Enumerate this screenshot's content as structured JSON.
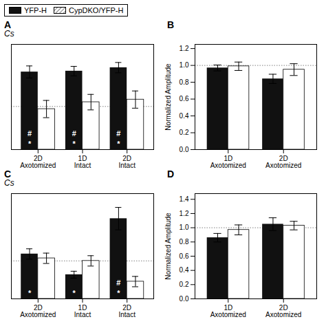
{
  "chart_data": [
    {
      "type": "bar",
      "title": "A",
      "subtitle": "Cs",
      "categories": [
        "2D\nAxotomized",
        "1D\nIntact",
        "2D\nIntact"
      ],
      "series": [
        {
          "name": "YFP-H",
          "color": "#111111",
          "values": [
            0.9,
            0.91,
            0.95
          ],
          "errors": [
            0.07,
            0.055,
            0.06
          ]
        },
        {
          "name": "CypDKO/YFP-H",
          "color": "#ffffff",
          "values": [
            0.47,
            0.55,
            0.58
          ],
          "errors": [
            0.1,
            0.09,
            0.1
          ]
        }
      ],
      "ylim": [
        0,
        1.22
      ],
      "yticks": [],
      "tick_labels": "x",
      "reference_y": 0.5,
      "bar_annotations": [
        [
          "#",
          "*"
        ],
        [
          "#",
          "*"
        ],
        [
          "#",
          "*"
        ]
      ],
      "legend": "upper left"
    },
    {
      "type": "bar",
      "title": "B",
      "categories": [
        "1D\nAxotomized",
        "2D\nAxotomized"
      ],
      "series": [
        {
          "name": "YFP-H",
          "color": "#111111",
          "values": [
            0.97,
            0.84
          ],
          "errors": [
            0.035,
            0.055
          ]
        },
        {
          "name": "CypDKO/YFP-H",
          "color": "#ffffff",
          "values": [
            0.99,
            0.95
          ],
          "errors": [
            0.05,
            0.07
          ]
        }
      ],
      "ylim": [
        0,
        1.25
      ],
      "yticks": [
        {
          "value": 0.0,
          "label": "0.0"
        },
        0.2,
        0.4,
        0.6,
        0.8,
        {
          "value": 1.0,
          "label": "1.0"
        },
        1.2
      ],
      "ylabel": "Normalized Amplitude",
      "reference_y": 1.0
    },
    {
      "type": "bar",
      "title": "C",
      "subtitle": "Cs",
      "categories": [
        "2D\nAxotomized",
        "1D\nIntact",
        "2D\nIntact"
      ],
      "series": [
        {
          "name": "YFP-H",
          "color": "#111111",
          "values": [
            0.52,
            0.28,
            0.93
          ],
          "errors": [
            0.06,
            0.04,
            0.13
          ]
        },
        {
          "name": "CypDKO/YFP-H",
          "color": "#ffffff",
          "values": [
            0.47,
            0.44,
            0.2
          ],
          "errors": [
            0.06,
            0.06,
            0.06
          ]
        }
      ],
      "ylim": [
        0,
        1.22
      ],
      "yticks": [],
      "tick_labels": "x",
      "reference_y": 0.44,
      "bar_annotations": [
        [
          "*"
        ],
        [
          "*"
        ],
        [
          "#",
          "*"
        ]
      ]
    },
    {
      "type": "bar",
      "title": "D",
      "categories": [
        "1D\nAxotomized",
        "2D\nAxotomized"
      ],
      "series": [
        {
          "name": "YFP-H",
          "color": "#111111",
          "values": [
            0.86,
            1.05
          ],
          "errors": [
            0.06,
            0.09
          ]
        },
        {
          "name": "CypDKO/YFP-H",
          "color": "#ffffff",
          "values": [
            0.97,
            1.03
          ],
          "errors": [
            0.07,
            0.06
          ]
        }
      ],
      "ylim": [
        0,
        1.48
      ],
      "yticks": [
        {
          "value": 0.0,
          "label": "0.0"
        },
        0.2,
        0.4,
        0.6,
        0.8,
        {
          "value": 1.0,
          "label": "1.0"
        },
        1.2,
        1.4
      ],
      "ylabel": "Normalized Amplitude",
      "reference_y": 1.0
    }
  ]
}
